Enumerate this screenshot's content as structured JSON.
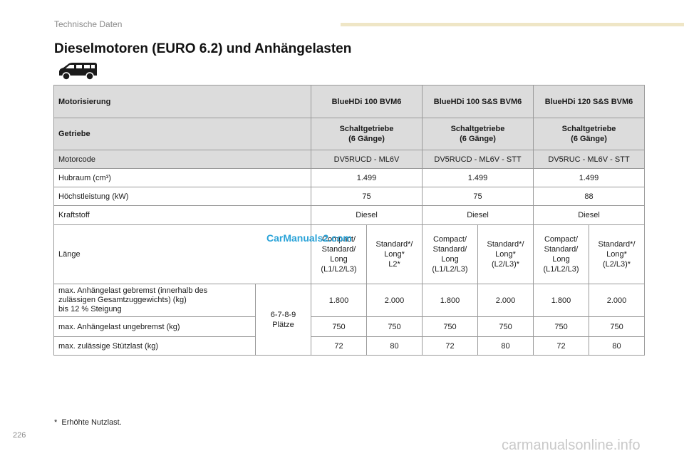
{
  "header": {
    "section": "Technische Daten"
  },
  "title": "Dieselmotoren (EURO 6.2) und Anhängelasten",
  "table": {
    "motorisierung_label": "Motorisierung",
    "engines": [
      "BlueHDi 100 BVM6",
      "BlueHDi 100 S&S BVM6",
      "BlueHDi 120 S&S BVM6"
    ],
    "getriebe_label": "Getriebe",
    "getriebe": [
      "Schaltgetriebe\n(6 Gänge)",
      "Schaltgetriebe\n(6 Gänge)",
      "Schaltgetriebe\n(6 Gänge)"
    ],
    "motorcode_label": "Motorcode",
    "motorcode": [
      "DV5RUCD - ML6V",
      "DV5RUCD - ML6V - STT",
      "DV5RUC - ML6V - STT"
    ],
    "hubraum_label": "Hubraum (cm³)",
    "hubraum": [
      "1.499",
      "1.499",
      "1.499"
    ],
    "leistung_label": "Höchstleistung (kW)",
    "leistung": [
      "75",
      "75",
      "88"
    ],
    "kraftstoff_label": "Kraftstoff",
    "kraftstoff": [
      "Diesel",
      "Diesel",
      "Diesel"
    ],
    "laenge_label": "Länge",
    "laenge": [
      "Compact/\nStandard/\nLong\n(L1/L2/L3)",
      "Standard*/\nLong*\nL2*",
      "Compact/\nStandard/\nLong\n(L1/L2/L3)",
      "Standard*/\nLong*\n(L2/L3)*",
      "Compact/\nStandard/\nLong\n(L1/L2/L3)",
      "Standard*/\nLong*\n(L2/L3)*"
    ],
    "gebremst_label": "max. Anhängelast gebremst (innerhalb des\nzulässigen Gesamtzuggewichts) (kg)\nbis 12 % Steigung",
    "plaetze": "6-7-8-9\nPlätze",
    "gebremst": [
      "1.800",
      "2.000",
      "1.800",
      "2.000",
      "1.800",
      "2.000"
    ],
    "ungebremst_label": "max. Anhängelast ungebremst (kg)",
    "ungebremst": [
      "750",
      "750",
      "750",
      "750",
      "750",
      "750"
    ],
    "stuetzlast_label": "max. zulässige Stützlast (kg)",
    "stuetzlast": [
      "72",
      "80",
      "72",
      "80",
      "72",
      "80"
    ]
  },
  "watermark": "CarManuals2.com",
  "footnote": {
    "marker": "*",
    "text": "Erhöhte Nutzlast."
  },
  "page_number": "226",
  "footer_watermark": "carmanualsonline.info"
}
